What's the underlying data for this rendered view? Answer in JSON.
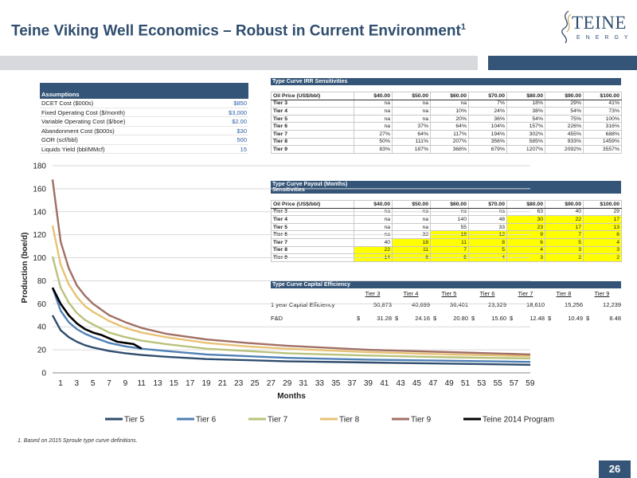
{
  "header": {
    "title": "Teine Viking Well Economics – Robust in Current Environment",
    "title_sup": "1",
    "logo_word": "TEINE",
    "logo_sub": "ENERGY"
  },
  "assumptions": {
    "heading": "Assumptions",
    "rows": [
      {
        "label": "DCET Cost ($000s)",
        "value": "$850"
      },
      {
        "label": "Fixed Operating Cost ($/month)",
        "value": "$3,000"
      },
      {
        "label": "Variable Operating Cost ($/boe)",
        "value": "$2.00"
      },
      {
        "label": "Abandonment Cost ($000s)",
        "value": "$30"
      },
      {
        "label": "GOR (scf/bbl)",
        "value": "500"
      },
      {
        "label": "Liquids Yield (bbl/MMcf)",
        "value": "15"
      }
    ]
  },
  "irr_table": {
    "heading": "Type Curve IRR Sensitivities",
    "columns": [
      "Oil Price (US$/bbl)",
      "$40.00",
      "$50.00",
      "$60.00",
      "$70.00",
      "$80.00",
      "$90.00",
      "$100.00"
    ],
    "rows": [
      [
        "Tier 3",
        "na",
        "na",
        "na",
        "7%",
        "18%",
        "29%",
        "41%"
      ],
      [
        "Tier 4",
        "na",
        "na",
        "10%",
        "24%",
        "38%",
        "54%",
        "73%"
      ],
      [
        "Tier 5",
        "na",
        "na",
        "20%",
        "36%",
        "54%",
        "75%",
        "100%"
      ],
      [
        "Tier 6",
        "na",
        "37%",
        "64%",
        "104%",
        "157%",
        "226%",
        "316%"
      ],
      [
        "Tier 7",
        "27%",
        "64%",
        "117%",
        "194%",
        "302%",
        "455%",
        "688%"
      ],
      [
        "Tier 8",
        "50%",
        "111%",
        "207%",
        "356%",
        "585%",
        "933%",
        "1459%"
      ],
      [
        "Tier 9",
        "83%",
        "187%",
        "368%",
        "679%",
        "1207%",
        "2092%",
        "3557%"
      ]
    ]
  },
  "payout_table": {
    "heading_line1": "Type Curve Payout (Months)",
    "heading_line2": "Sensitivities",
    "columns": [
      "Oil Price (US$/bbl)",
      "$40.00",
      "$50.00",
      "$60.00",
      "$70.00",
      "$80.00",
      "$90.00",
      "$100.00"
    ],
    "rows": [
      [
        "Tier 3",
        "na",
        "na",
        "na",
        "na",
        "63",
        "40",
        "29"
      ],
      [
        "Tier 4",
        "na",
        "na",
        "140",
        "48",
        "30",
        "22",
        "17"
      ],
      [
        "Tier 5",
        "na",
        "na",
        "55",
        "33",
        "23",
        "17",
        "13"
      ],
      [
        "Tier 6",
        "na",
        "32",
        "18",
        "12",
        "9",
        "7",
        "6"
      ],
      [
        "Tier 7",
        "40",
        "18",
        "11",
        "8",
        "6",
        "5",
        "4"
      ],
      [
        "Tier 8",
        "22",
        "11",
        "7",
        "5",
        "4",
        "3",
        "3"
      ],
      [
        "Tier 9",
        "14",
        "8",
        "5",
        "4",
        "3",
        "2",
        "2"
      ]
    ],
    "highlight_color": "#ffff00",
    "highlighted_cells": [
      [
        1,
        5
      ],
      [
        1,
        6
      ],
      [
        1,
        7
      ],
      [
        2,
        5
      ],
      [
        2,
        6
      ],
      [
        2,
        7
      ],
      [
        3,
        3
      ],
      [
        3,
        4
      ],
      [
        3,
        5
      ],
      [
        3,
        6
      ],
      [
        3,
        7
      ],
      [
        4,
        2
      ],
      [
        4,
        3
      ],
      [
        4,
        4
      ],
      [
        4,
        5
      ],
      [
        4,
        6
      ],
      [
        4,
        7
      ],
      [
        5,
        1
      ],
      [
        5,
        2
      ],
      [
        5,
        3
      ],
      [
        5,
        4
      ],
      [
        5,
        5
      ],
      [
        5,
        6
      ],
      [
        5,
        7
      ],
      [
        6,
        1
      ],
      [
        6,
        2
      ],
      [
        6,
        3
      ],
      [
        6,
        4
      ],
      [
        6,
        5
      ],
      [
        6,
        6
      ],
      [
        6,
        7
      ]
    ]
  },
  "capital_efficiency": {
    "heading": "Type Curve Capital Efficiency",
    "tiers": [
      "Tier 3",
      "Tier 4",
      "Tier 5",
      "Tier 6",
      "Tier 7",
      "Tier 8",
      "Tier 9"
    ],
    "row1_label": "1 year Capital Efficiency",
    "row1_values": [
      "50,873",
      "40,699",
      "36,401",
      "23,329",
      "18,610",
      "15,256",
      "12,239"
    ],
    "row2_label": "F&D",
    "currency": "$",
    "row2_values": [
      "31.28",
      "24.16",
      "20.80",
      "15.60",
      "12.48",
      "10.49",
      "8.48"
    ]
  },
  "chart_data": {
    "type": "line",
    "xlabel": "Months",
    "ylabel": "Production (boe/d)",
    "xlim": [
      1,
      60
    ],
    "ylim": [
      0,
      180
    ],
    "yticks": [
      0,
      20,
      40,
      60,
      80,
      100,
      120,
      140,
      160,
      180
    ],
    "xticks": [
      1,
      3,
      5,
      7,
      9,
      11,
      13,
      15,
      17,
      19,
      21,
      23,
      25,
      27,
      29,
      31,
      33,
      35,
      37,
      39,
      41,
      43,
      45,
      47,
      49,
      51,
      53,
      55,
      57,
      59
    ],
    "legend_position": "bottom",
    "grid": "horizontal",
    "series": [
      {
        "name": "Tier 5",
        "color": "#2f4d6e",
        "x": [
          1,
          2,
          3,
          4,
          5,
          6,
          8,
          10,
          12,
          15,
          20,
          25,
          30,
          40,
          50,
          60
        ],
        "values": [
          50,
          37,
          31,
          27,
          24,
          22,
          19,
          17,
          15.5,
          14,
          12,
          11,
          10,
          9,
          8,
          7
        ]
      },
      {
        "name": "Tier 6",
        "color": "#4f80b5",
        "x": [
          1,
          2,
          3,
          4,
          5,
          6,
          8,
          10,
          12,
          15,
          20,
          25,
          30,
          40,
          50,
          60
        ],
        "values": [
          74,
          54,
          44,
          38,
          34,
          31,
          26,
          23,
          21,
          19,
          16,
          14.5,
          13,
          11.5,
          10.5,
          9.5
        ]
      },
      {
        "name": "Tier 7",
        "color": "#b9c27c",
        "x": [
          1,
          2,
          3,
          4,
          5,
          6,
          8,
          10,
          12,
          15,
          20,
          25,
          30,
          40,
          50,
          60
        ],
        "values": [
          101,
          74,
          61,
          52,
          46,
          42,
          35,
          31,
          28,
          25,
          21,
          19,
          17,
          15,
          13.5,
          12.5
        ]
      },
      {
        "name": "Tier 8",
        "color": "#e8c274",
        "x": [
          1,
          2,
          3,
          4,
          5,
          6,
          8,
          10,
          12,
          15,
          20,
          25,
          30,
          40,
          50,
          60
        ],
        "values": [
          128,
          94,
          77,
          66,
          58,
          53,
          45,
          39,
          35,
          31,
          26,
          23,
          21,
          18,
          16,
          14.5
        ]
      },
      {
        "name": "Tier 9",
        "color": "#a06f64",
        "x": [
          1,
          2,
          3,
          4,
          5,
          6,
          8,
          10,
          12,
          15,
          20,
          25,
          30,
          40,
          50,
          60
        ],
        "values": [
          168,
          114,
          91,
          76,
          67,
          60,
          50,
          44,
          39,
          34,
          29,
          26,
          23.5,
          20,
          18,
          16
        ]
      },
      {
        "name": "Teine 2014 Program",
        "color": "#000000",
        "x": [
          1,
          2,
          3,
          4,
          5,
          6,
          7,
          8,
          9,
          10,
          11,
          12
        ],
        "values": [
          74,
          60,
          50,
          43,
          38,
          35,
          33,
          30,
          27,
          26,
          25,
          21
        ]
      }
    ]
  },
  "footer": {
    "footnote": "1. Based on 2015 Sproule type curve definitions.",
    "page_number": "26"
  }
}
